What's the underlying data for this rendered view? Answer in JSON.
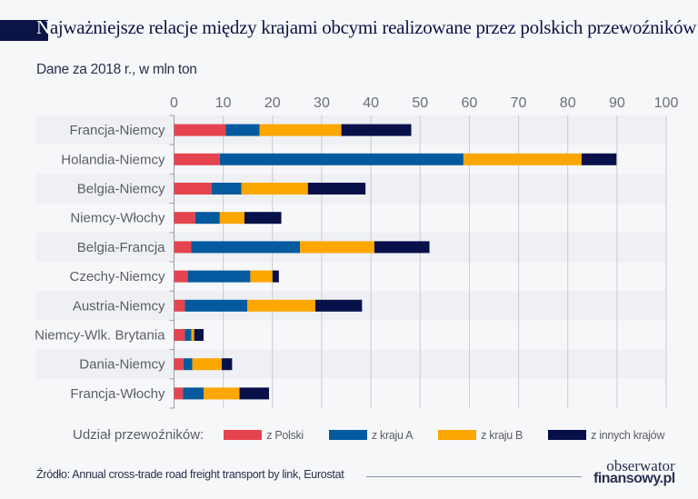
{
  "header": {
    "title_first_letter": "N",
    "title_rest": "ajważniejsze relacje między krajami obcymi realizowane przez polskich przewoźników",
    "subtitle": "Dane za 2018 r., w mln ton"
  },
  "chart_data": {
    "type": "bar",
    "orientation": "horizontal",
    "stacked": true,
    "title": "Najważniejsze relacje między krajami obcymi realizowane przez polskich przewoźników",
    "subtitle": "Dane za 2018 r., w mln ton",
    "xlabel": "",
    "ylabel": "",
    "xlim": [
      0,
      100
    ],
    "x_ticks": [
      0,
      10,
      20,
      30,
      40,
      50,
      60,
      70,
      80,
      90,
      100
    ],
    "x_axis_position": "top",
    "grid": true,
    "categories": [
      "Francja-Niemcy",
      "Holandia-Niemcy",
      "Belgia-Niemcy",
      "Niemcy-Włochy",
      "Belgia-Francja",
      "Czechy-Niemcy",
      "Austria-Niemcy",
      "Niemcy-Wlk. Brytania",
      "Dania-Niemcy",
      "Francja-Włochy"
    ],
    "series": [
      {
        "name": "z Polski",
        "color": "#e5444e",
        "values": [
          10.5,
          9.3,
          7.6,
          4.3,
          3.5,
          2.8,
          2.2,
          2.2,
          1.9,
          1.8
        ]
      },
      {
        "name": "z kraju A",
        "color": "#045a9e",
        "values": [
          6.9,
          49.5,
          6.1,
          5.0,
          22.1,
          12.7,
          12.7,
          1.3,
          1.8,
          4.2
        ]
      },
      {
        "name": "z kraju B",
        "color": "#fca600",
        "values": [
          16.6,
          24.0,
          13.5,
          5.0,
          15.1,
          4.5,
          13.8,
          0.6,
          6.0,
          7.3
        ]
      },
      {
        "name": "z innych krajów",
        "color": "#08104a",
        "values": [
          14.2,
          7.1,
          11.7,
          7.5,
          11.2,
          1.3,
          9.5,
          1.9,
          2.1,
          6.0
        ]
      }
    ],
    "legend": {
      "title": "Udział przewoźników:",
      "position": "bottom"
    }
  },
  "footer": {
    "source": "Źródło: Annual cross-trade road freight transport by link, Eurostat",
    "logo_line1": "obserwator",
    "logo_line2": "finansowy.pl"
  },
  "colors": {
    "title": "#0c1445",
    "band": "#eef0f3",
    "background": "#f6f7f9",
    "grid": "#c9cbd0"
  }
}
